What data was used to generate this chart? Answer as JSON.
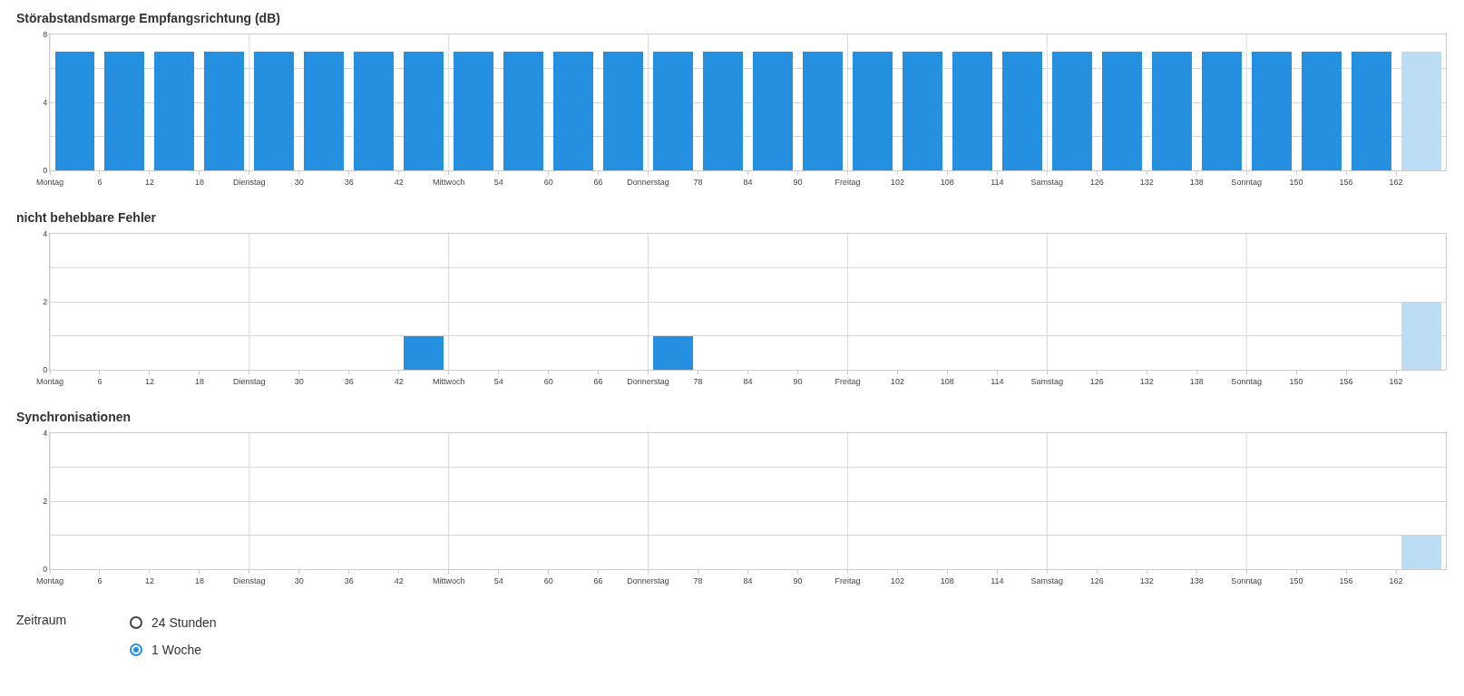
{
  "chart_data": [
    {
      "type": "bar",
      "title": "Störabstandsmarge Empfangsrichtung (dB)",
      "x": [
        3,
        9,
        15,
        21,
        27,
        33,
        39,
        45,
        51,
        57,
        63,
        69,
        75,
        81,
        87,
        93,
        99,
        105,
        111,
        117,
        123,
        129,
        135,
        141,
        147,
        153,
        159,
        165
      ],
      "values": [
        7,
        7,
        7,
        7,
        7,
        7,
        7,
        7,
        7,
        7,
        7,
        7,
        7,
        7,
        7,
        7,
        7,
        7,
        7,
        7,
        7,
        7,
        7,
        7,
        7,
        7,
        7,
        7
      ],
      "colors": [
        "#258fe0",
        "#258fe0",
        "#258fe0",
        "#258fe0",
        "#258fe0",
        "#258fe0",
        "#258fe0",
        "#258fe0",
        "#258fe0",
        "#258fe0",
        "#258fe0",
        "#258fe0",
        "#258fe0",
        "#258fe0",
        "#258fe0",
        "#258fe0",
        "#258fe0",
        "#258fe0",
        "#258fe0",
        "#258fe0",
        "#258fe0",
        "#258fe0",
        "#258fe0",
        "#258fe0",
        "#258fe0",
        "#258fe0",
        "#258fe0",
        "#bcdcf3"
      ],
      "xlim": [
        0,
        168
      ],
      "xticks": [
        {
          "value": 0,
          "label": "Montag"
        },
        6,
        12,
        18,
        {
          "value": 24,
          "label": "Dienstag"
        },
        30,
        36,
        42,
        {
          "value": 48,
          "label": "Mittwoch"
        },
        54,
        60,
        66,
        {
          "value": 72,
          "label": "Donnerstag"
        },
        78,
        84,
        90,
        {
          "value": 96,
          "label": "Freitag"
        },
        102,
        108,
        114,
        {
          "value": 120,
          "label": "Samstag"
        },
        126,
        132,
        138,
        {
          "value": 144,
          "label": "Sonntag"
        },
        150,
        156,
        162
      ],
      "ylim": [
        0,
        8
      ],
      "yticks": [
        0,
        {
          "value": 2,
          "label": null
        },
        4,
        {
          "value": 6,
          "label": null
        },
        8
      ],
      "grid": true
    },
    {
      "type": "bar",
      "title": "nicht behebbare Fehler",
      "x": [
        3,
        9,
        15,
        21,
        27,
        33,
        39,
        45,
        51,
        57,
        63,
        69,
        75,
        81,
        87,
        93,
        99,
        105,
        111,
        117,
        123,
        129,
        135,
        141,
        147,
        153,
        159,
        165
      ],
      "values": [
        0,
        0,
        0,
        0,
        0,
        0,
        0,
        1,
        0,
        0,
        0,
        0,
        1,
        0,
        0,
        0,
        0,
        0,
        0,
        0,
        0,
        0,
        0,
        0,
        0,
        0,
        0,
        2
      ],
      "grid": true,
      "colors": [
        "#258fe0",
        "#258fe0",
        "#258fe0",
        "#258fe0",
        "#258fe0",
        "#258fe0",
        "#258fe0",
        "#258fe0",
        "#258fe0",
        "#258fe0",
        "#258fe0",
        "#258fe0",
        "#258fe0",
        "#258fe0",
        "#258fe0",
        "#258fe0",
        "#258fe0",
        "#258fe0",
        "#258fe0",
        "#258fe0",
        "#258fe0",
        "#258fe0",
        "#258fe0",
        "#258fe0",
        "#258fe0",
        "#258fe0",
        "#258fe0",
        "#bcdcf3"
      ],
      "xlim": [
        0,
        168
      ],
      "xticks": [
        {
          "value": 0,
          "label": "Montag"
        },
        6,
        12,
        18,
        {
          "value": 24,
          "label": "Dienstag"
        },
        30,
        36,
        42,
        {
          "value": 48,
          "label": "Mittwoch"
        },
        54,
        60,
        66,
        {
          "value": 72,
          "label": "Donnerstag"
        },
        78,
        84,
        90,
        {
          "value": 96,
          "label": "Freitag"
        },
        102,
        108,
        114,
        {
          "value": 120,
          "label": "Samstag"
        },
        126,
        132,
        138,
        {
          "value": 144,
          "label": "Sonntag"
        },
        150,
        156,
        162
      ],
      "ylim": [
        0,
        4
      ],
      "yticks": [
        0,
        {
          "value": 1,
          "label": null
        },
        2,
        {
          "value": 3,
          "label": null
        },
        4
      ]
    },
    {
      "type": "bar",
      "title": "Synchronisationen",
      "x": [
        3,
        9,
        15,
        21,
        27,
        33,
        39,
        45,
        51,
        57,
        63,
        69,
        75,
        81,
        87,
        93,
        99,
        105,
        111,
        117,
        123,
        129,
        135,
        141,
        147,
        153,
        159,
        165
      ],
      "values": [
        0,
        0,
        0,
        0,
        0,
        0,
        0,
        0,
        0,
        0,
        0,
        0,
        0,
        0,
        0,
        0,
        0,
        0,
        0,
        0,
        0,
        0,
        0,
        0,
        0,
        0,
        0,
        1
      ],
      "grid": true,
      "colors": [
        "#258fe0",
        "#258fe0",
        "#258fe0",
        "#258fe0",
        "#258fe0",
        "#258fe0",
        "#258fe0",
        "#258fe0",
        "#258fe0",
        "#258fe0",
        "#258fe0",
        "#258fe0",
        "#258fe0",
        "#258fe0",
        "#258fe0",
        "#258fe0",
        "#258fe0",
        "#258fe0",
        "#258fe0",
        "#258fe0",
        "#258fe0",
        "#258fe0",
        "#258fe0",
        "#258fe0",
        "#258fe0",
        "#258fe0",
        "#258fe0",
        "#bcdcf3"
      ],
      "xlim": [
        0,
        168
      ],
      "xticks": [
        {
          "value": 0,
          "label": "Montag"
        },
        6,
        12,
        18,
        {
          "value": 24,
          "label": "Dienstag"
        },
        30,
        36,
        42,
        {
          "value": 48,
          "label": "Mittwoch"
        },
        54,
        60,
        66,
        {
          "value": 72,
          "label": "Donnerstag"
        },
        78,
        84,
        90,
        {
          "value": 96,
          "label": "Freitag"
        },
        102,
        108,
        114,
        {
          "value": 120,
          "label": "Samstag"
        },
        126,
        132,
        138,
        {
          "value": 144,
          "label": "Sonntag"
        },
        150,
        156,
        162
      ],
      "ylim": [
        0,
        4
      ],
      "yticks": [
        0,
        {
          "value": 1,
          "label": null
        },
        2,
        {
          "value": 3,
          "label": null
        },
        4
      ]
    },
    {
      "type": "other",
      "title": "Zeitraum",
      "annotations": [
        "24 Stunden",
        "1 Woche"
      ]
    }
  ]
}
